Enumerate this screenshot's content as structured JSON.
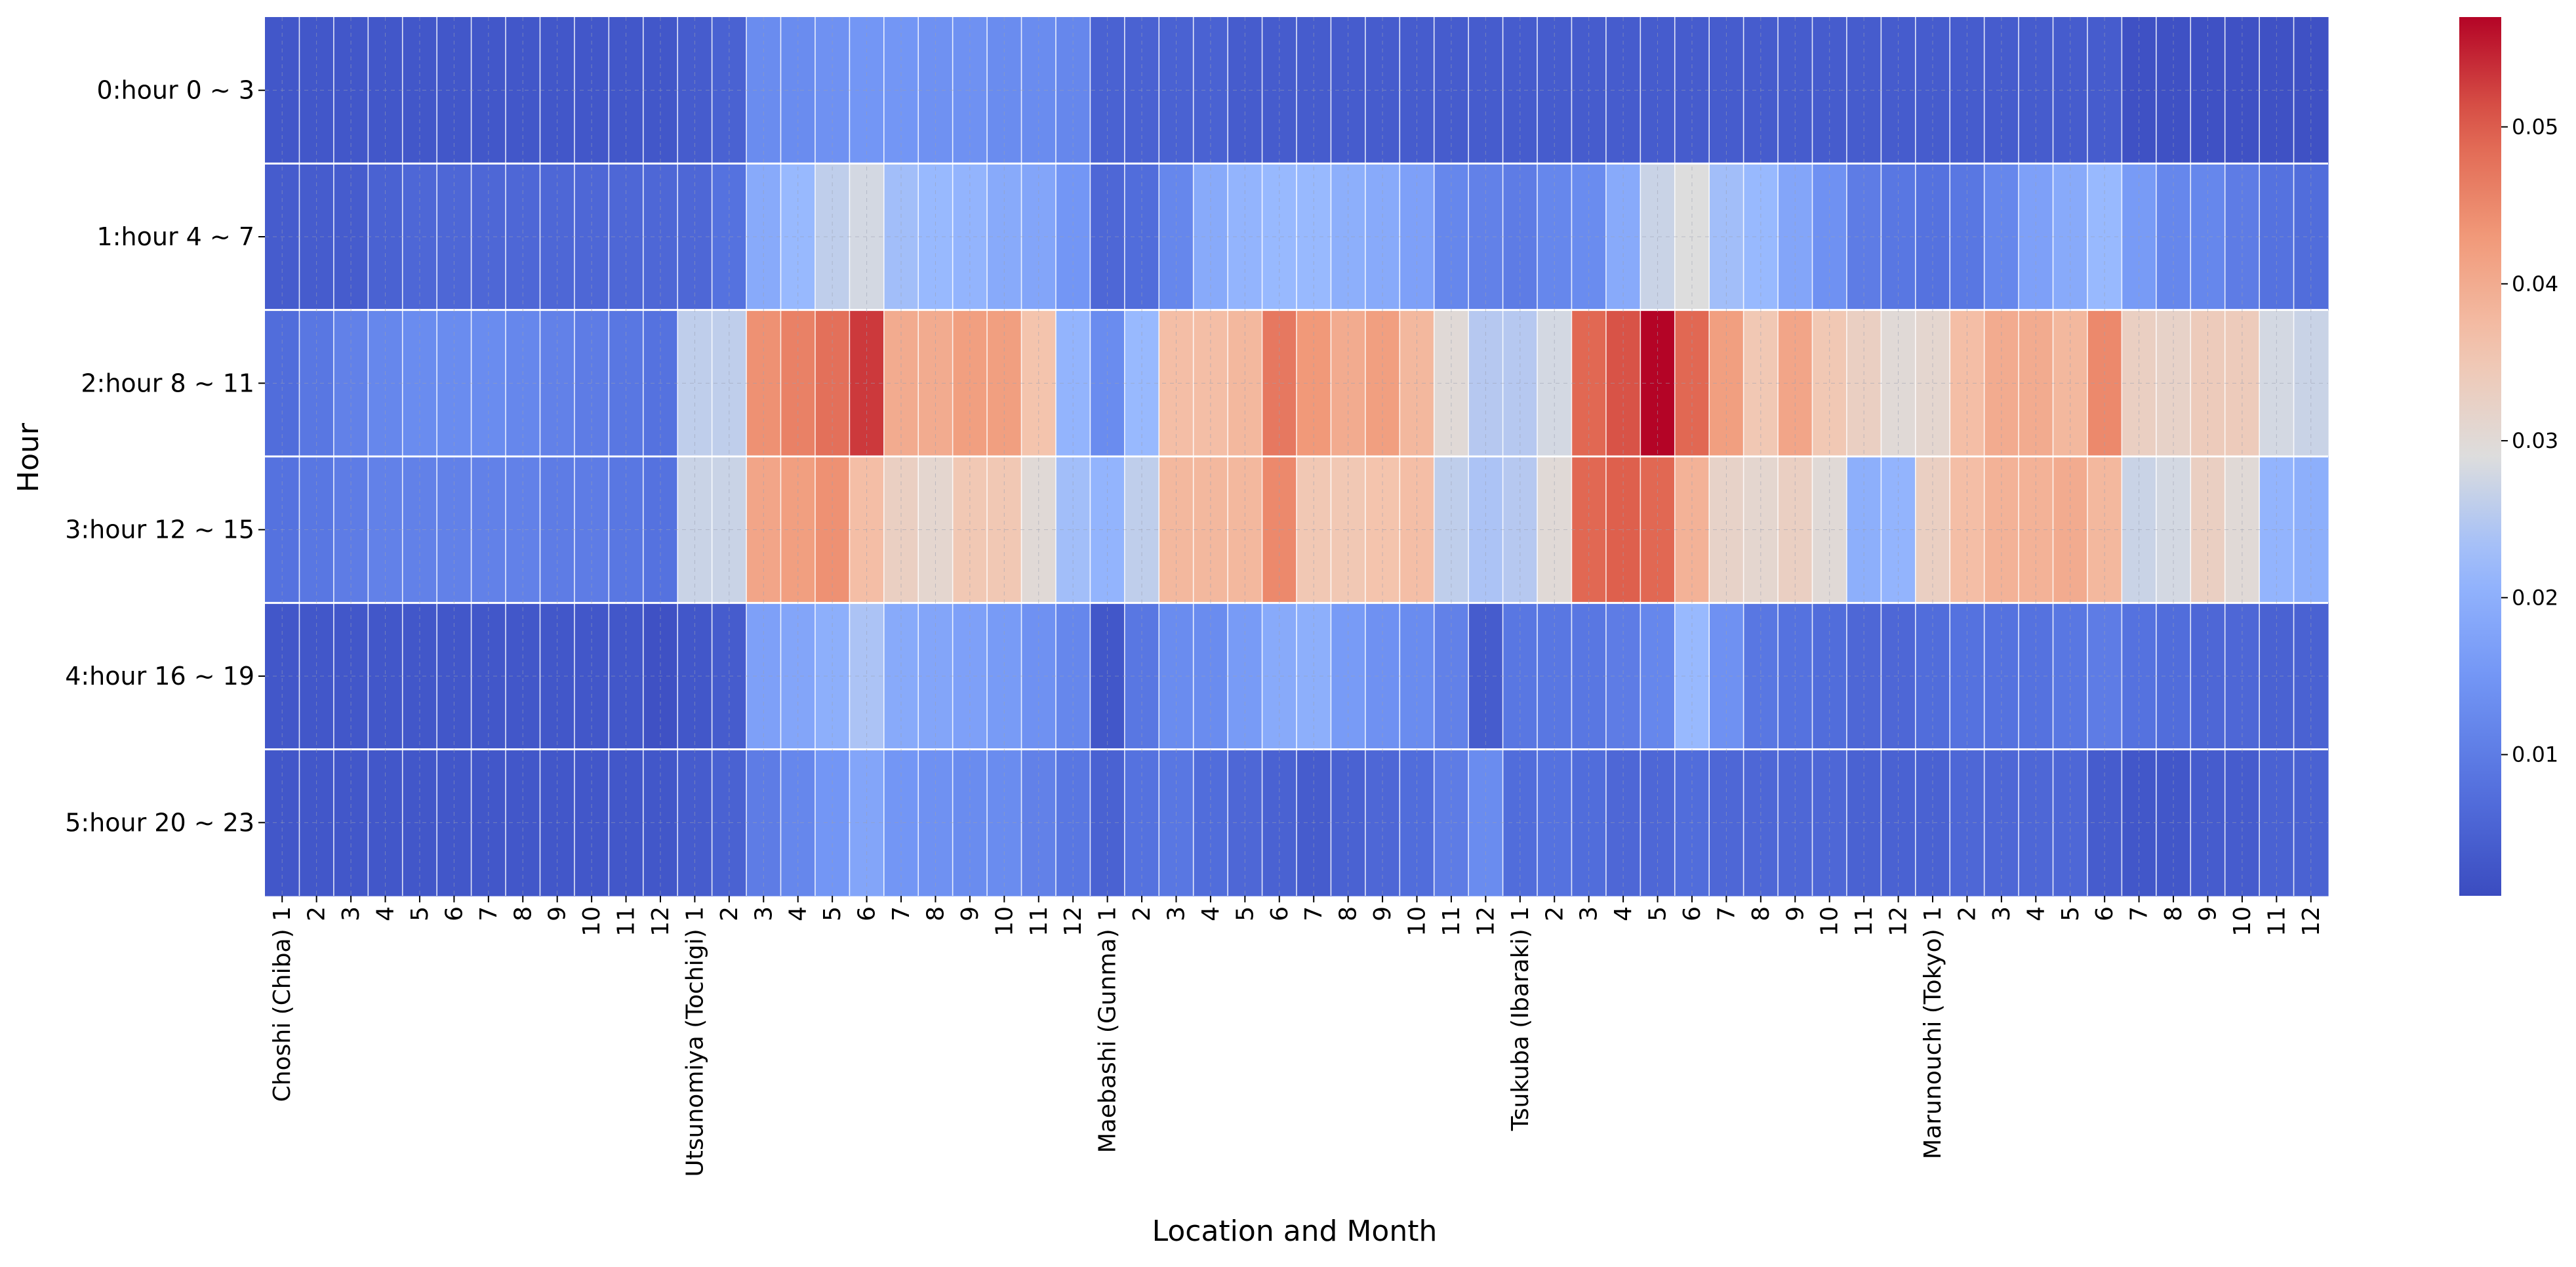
{
  "chart_data": {
    "type": "heatmap",
    "title": "",
    "xlabel": "Location and Month",
    "ylabel": "Hour",
    "rows": [
      "0:hour 0 ~ 3",
      "1:hour 4 ~ 7",
      "2:hour 8 ~ 11",
      "3:hour 12 ~ 15",
      "4:hour 16 ~ 19",
      "5:hour 20 ~ 23"
    ],
    "locations": [
      "Choshi (Chiba)",
      "Utsunomiya (Tochigi)",
      "Maebashi (Gunma)",
      "Tsukuba (Ibaraki)",
      "Marunouchi (Tokyo)"
    ],
    "months": [
      "1",
      "2",
      "3",
      "4",
      "5",
      "6",
      "7",
      "8",
      "9",
      "10",
      "11",
      "12"
    ],
    "x_tick_labels": [
      "Choshi (Chiba) 1",
      "2",
      "3",
      "4",
      "5",
      "6",
      "7",
      "8",
      "9",
      "10",
      "11",
      "12",
      "Utsunomiya (Tochigi) 1",
      "2",
      "3",
      "4",
      "5",
      "6",
      "7",
      "8",
      "9",
      "10",
      "11",
      "12",
      "Maebashi (Gunma) 1",
      "2",
      "3",
      "4",
      "5",
      "6",
      "7",
      "8",
      "9",
      "10",
      "11",
      "12",
      "Tsukuba (Ibaraki) 1",
      "2",
      "3",
      "4",
      "5",
      "6",
      "7",
      "8",
      "9",
      "10",
      "11",
      "12",
      "Marunouchi (Tokyo) 1",
      "2",
      "3",
      "4",
      "5",
      "6",
      "7",
      "8",
      "9",
      "10",
      "11",
      "12"
    ],
    "values": [
      [
        0.003,
        0.003,
        0.003,
        0.003,
        0.003,
        0.003,
        0.003,
        0.003,
        0.003,
        0.003,
        0.003,
        0.003,
        0.004,
        0.005,
        0.013,
        0.013,
        0.014,
        0.015,
        0.015,
        0.014,
        0.014,
        0.013,
        0.013,
        0.012,
        0.005,
        0.005,
        0.005,
        0.005,
        0.004,
        0.004,
        0.004,
        0.004,
        0.004,
        0.004,
        0.004,
        0.004,
        0.004,
        0.004,
        0.004,
        0.004,
        0.004,
        0.004,
        0.004,
        0.004,
        0.004,
        0.004,
        0.004,
        0.004,
        0.004,
        0.004,
        0.004,
        0.004,
        0.004,
        0.004,
        0.002,
        0.002,
        0.002,
        0.002,
        0.002,
        0.002
      ],
      [
        0.004,
        0.004,
        0.004,
        0.005,
        0.006,
        0.006,
        0.006,
        0.006,
        0.006,
        0.006,
        0.006,
        0.006,
        0.006,
        0.008,
        0.019,
        0.022,
        0.026,
        0.028,
        0.023,
        0.022,
        0.021,
        0.019,
        0.018,
        0.015,
        0.006,
        0.007,
        0.012,
        0.019,
        0.021,
        0.022,
        0.022,
        0.02,
        0.019,
        0.017,
        0.012,
        0.011,
        0.01,
        0.012,
        0.013,
        0.019,
        0.027,
        0.029,
        0.023,
        0.022,
        0.018,
        0.014,
        0.01,
        0.009,
        0.008,
        0.009,
        0.012,
        0.017,
        0.019,
        0.022,
        0.016,
        0.012,
        0.012,
        0.01,
        0.008,
        0.007
      ],
      [
        0.007,
        0.009,
        0.011,
        0.012,
        0.013,
        0.013,
        0.013,
        0.012,
        0.011,
        0.01,
        0.009,
        0.008,
        0.026,
        0.026,
        0.044,
        0.046,
        0.048,
        0.053,
        0.04,
        0.04,
        0.042,
        0.042,
        0.036,
        0.021,
        0.013,
        0.022,
        0.037,
        0.037,
        0.038,
        0.047,
        0.043,
        0.04,
        0.042,
        0.038,
        0.03,
        0.025,
        0.025,
        0.028,
        0.049,
        0.051,
        0.057,
        0.049,
        0.042,
        0.035,
        0.041,
        0.035,
        0.033,
        0.03,
        0.031,
        0.037,
        0.04,
        0.04,
        0.038,
        0.045,
        0.033,
        0.032,
        0.034,
        0.034,
        0.028,
        0.027
      ],
      [
        0.008,
        0.009,
        0.01,
        0.011,
        0.011,
        0.011,
        0.011,
        0.011,
        0.01,
        0.01,
        0.009,
        0.008,
        0.027,
        0.027,
        0.041,
        0.042,
        0.044,
        0.037,
        0.033,
        0.031,
        0.035,
        0.035,
        0.03,
        0.023,
        0.021,
        0.026,
        0.038,
        0.038,
        0.038,
        0.045,
        0.035,
        0.035,
        0.036,
        0.037,
        0.026,
        0.024,
        0.025,
        0.03,
        0.049,
        0.05,
        0.049,
        0.039,
        0.032,
        0.031,
        0.033,
        0.03,
        0.02,
        0.021,
        0.033,
        0.037,
        0.039,
        0.039,
        0.04,
        0.038,
        0.027,
        0.028,
        0.033,
        0.03,
        0.021,
        0.02
      ],
      [
        0.003,
        0.003,
        0.003,
        0.003,
        0.003,
        0.003,
        0.003,
        0.003,
        0.003,
        0.003,
        0.003,
        0.002,
        0.003,
        0.004,
        0.017,
        0.018,
        0.02,
        0.024,
        0.019,
        0.018,
        0.017,
        0.016,
        0.014,
        0.012,
        0.003,
        0.009,
        0.013,
        0.013,
        0.016,
        0.019,
        0.02,
        0.016,
        0.014,
        0.013,
        0.011,
        0.004,
        0.009,
        0.009,
        0.009,
        0.01,
        0.012,
        0.022,
        0.014,
        0.009,
        0.008,
        0.007,
        0.006,
        0.006,
        0.007,
        0.008,
        0.008,
        0.008,
        0.009,
        0.01,
        0.008,
        0.007,
        0.006,
        0.006,
        0.005,
        0.005
      ],
      [
        0.003,
        0.003,
        0.003,
        0.003,
        0.003,
        0.003,
        0.003,
        0.003,
        0.003,
        0.003,
        0.003,
        0.003,
        0.004,
        0.005,
        0.01,
        0.012,
        0.015,
        0.018,
        0.015,
        0.014,
        0.013,
        0.013,
        0.011,
        0.009,
        0.005,
        0.008,
        0.009,
        0.007,
        0.006,
        0.005,
        0.004,
        0.005,
        0.006,
        0.007,
        0.01,
        0.013,
        0.007,
        0.008,
        0.007,
        0.006,
        0.006,
        0.007,
        0.006,
        0.006,
        0.006,
        0.006,
        0.005,
        0.005,
        0.005,
        0.006,
        0.006,
        0.006,
        0.006,
        0.004,
        0.003,
        0.003,
        0.004,
        0.004,
        0.005,
        0.005
      ]
    ],
    "colormap": "coolwarm",
    "color_range": [
      0.001,
      0.057
    ],
    "colorbar_ticks": [
      "0.01",
      "0.02",
      "0.03",
      "0.04",
      "0.05"
    ],
    "grid": true
  }
}
